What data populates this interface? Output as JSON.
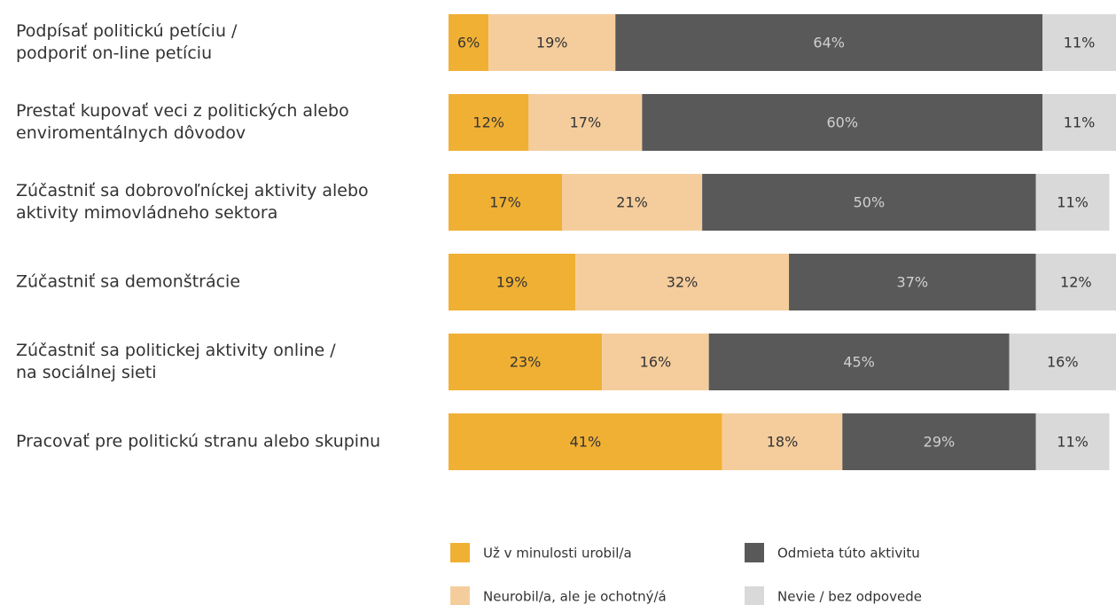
{
  "chart_data": {
    "type": "stacked-bar-horizontal",
    "categories": [
      [
        "Podpísať politickú petíciu /",
        "podporiť on-line petíciu"
      ],
      [
        "Prestať kupovať veci z politických alebo",
        "enviromentálnych dôvodov"
      ],
      [
        "Zúčastniť sa dobrovoľníckej aktivity alebo",
        "aktivity mimovládneho sektora"
      ],
      [
        "Zúčastniť sa demonštrácie"
      ],
      [
        "Zúčastniť sa politickej aktivity online /",
        "na sociálnej sieti"
      ],
      [
        "Pracovať pre politickú stranu alebo skupinu"
      ]
    ],
    "xlim": [
      0,
      100
    ],
    "series": [
      {
        "name": "Už v minulosti urobil/a",
        "color": "#f0b034",
        "values": [
          6,
          12,
          17,
          19,
          23,
          41
        ],
        "value_labels": [
          "6%",
          "12%",
          "17%",
          "19%",
          "23%",
          "41%"
        ]
      },
      {
        "name": "Neurobil/a, ale je ochotný/á",
        "color": "#f5cd9d",
        "values": [
          19,
          17,
          21,
          32,
          16,
          18
        ],
        "value_labels": [
          "19%",
          "17%",
          "21%",
          "32%",
          "16%",
          "18%"
        ]
      },
      {
        "name": "Odmieta túto aktivitu",
        "color": "#595959",
        "values": [
          64,
          60,
          50,
          37,
          45,
          29
        ],
        "value_labels": [
          "64%",
          "60%",
          "50%",
          "37%",
          "45%",
          "29%"
        ]
      },
      {
        "name": "Nevie / bez odpovede",
        "color": "#d9d9d9",
        "values": [
          11,
          11,
          11,
          12,
          16,
          11
        ],
        "value_labels": [
          "11%",
          "11%",
          "11%",
          "12%",
          "16%",
          "11%"
        ]
      }
    ]
  }
}
